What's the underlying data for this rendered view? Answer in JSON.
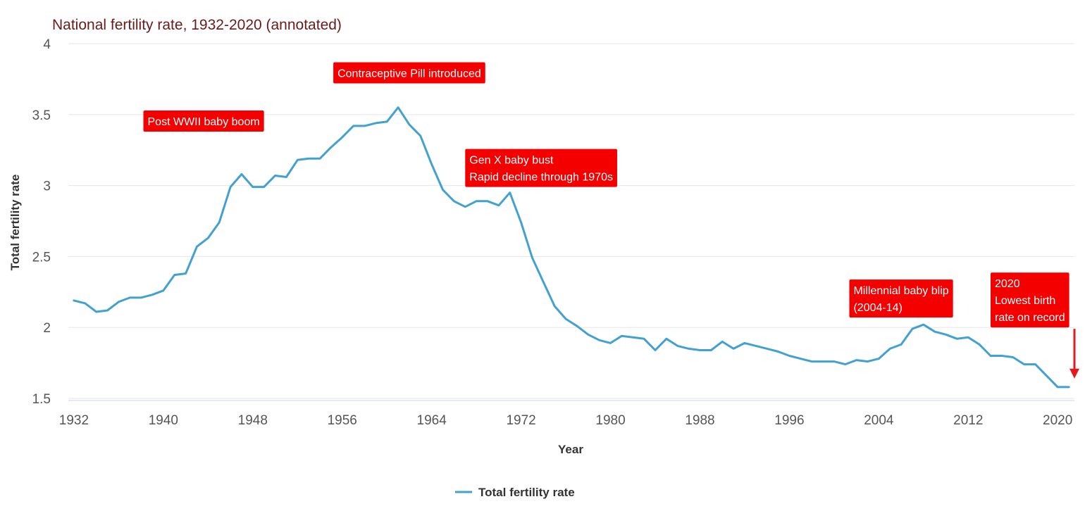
{
  "chart_data": {
    "type": "line",
    "title": "National fertility rate, 1932-2020 (annotated)",
    "xlabel": "Year",
    "ylabel": "Total fertility rate",
    "xlim": [
      1931.5,
      2021.5
    ],
    "ylim": [
      1.5,
      4
    ],
    "x_ticks": [
      1932,
      1940,
      1948,
      1956,
      1964,
      1972,
      1980,
      1988,
      1996,
      2004,
      2012,
      2020
    ],
    "y_ticks": [
      1.5,
      2,
      2.5,
      3,
      3.5,
      4
    ],
    "y_tick_labels": [
      "1.5",
      "2",
      "2.5",
      "3",
      "3.5",
      "4"
    ],
    "grid": true,
    "legend": "bottom-center",
    "series": [
      {
        "name": "Total fertility rate",
        "color": "#43a1d1",
        "x": [
          1932,
          1933,
          1934,
          1935,
          1936,
          1937,
          1938,
          1939,
          1940,
          1941,
          1942,
          1943,
          1944,
          1945,
          1946,
          1947,
          1948,
          1949,
          1950,
          1951,
          1952,
          1953,
          1954,
          1955,
          1956,
          1957,
          1958,
          1959,
          1960,
          1961,
          1962,
          1963,
          1964,
          1965,
          1966,
          1967,
          1968,
          1969,
          1970,
          1971,
          1972,
          1973,
          1974,
          1975,
          1976,
          1977,
          1978,
          1979,
          1980,
          1981,
          1982,
          1983,
          1984,
          1985,
          1986,
          1987,
          1988,
          1989,
          1990,
          1991,
          1992,
          1993,
          1994,
          1995,
          1996,
          1997,
          1998,
          1999,
          2000,
          2001,
          2002,
          2003,
          2004,
          2005,
          2006,
          2007,
          2008,
          2009,
          2010,
          2011,
          2012,
          2013,
          2014,
          2015,
          2016,
          2017,
          2018,
          2019,
          2020,
          2021
        ],
        "values": [
          2.19,
          2.17,
          2.11,
          2.12,
          2.18,
          2.21,
          2.21,
          2.23,
          2.26,
          2.37,
          2.38,
          2.57,
          2.63,
          2.74,
          2.99,
          3.08,
          2.99,
          2.99,
          3.07,
          3.06,
          3.18,
          3.19,
          3.19,
          3.27,
          3.34,
          3.42,
          3.42,
          3.44,
          3.45,
          3.55,
          3.43,
          3.35,
          3.15,
          2.97,
          2.89,
          2.85,
          2.89,
          2.89,
          2.86,
          2.95,
          2.74,
          2.49,
          2.32,
          2.15,
          2.06,
          2.01,
          1.95,
          1.91,
          1.89,
          1.94,
          1.93,
          1.92,
          1.84,
          1.92,
          1.87,
          1.85,
          1.84,
          1.84,
          1.9,
          1.85,
          1.89,
          1.87,
          1.85,
          1.83,
          1.8,
          1.78,
          1.76,
          1.76,
          1.76,
          1.74,
          1.77,
          1.76,
          1.78,
          1.85,
          1.88,
          1.99,
          2.02,
          1.97,
          1.95,
          1.92,
          1.93,
          1.88,
          1.8,
          1.8,
          1.79,
          1.74,
          1.74,
          1.66,
          1.58,
          1.58
        ]
      }
    ],
    "annotations": [
      {
        "lines": [
          "Post WWII baby boom"
        ],
        "x": 1949,
        "y": 3.38,
        "anchor": "bottom-right"
      },
      {
        "lines": [
          "Contraceptive Pill introduced"
        ],
        "x": 1962,
        "y": 3.72,
        "anchor": "bottom-center"
      },
      {
        "lines": [
          "Gen X baby bust",
          "Rapid decline through 1970s"
        ],
        "x": 1967,
        "y": 2.99,
        "anchor": "bottom-left"
      },
      {
        "lines": [
          "Millennial baby blip",
          "(2004-14)"
        ],
        "x": 2006,
        "y": 2.07,
        "anchor": "bottom-center"
      },
      {
        "lines": [
          "2020",
          "Lowest birth",
          "rate on record"
        ],
        "x": 2014,
        "y": 2.0,
        "anchor": "bottom-left"
      }
    ],
    "arrow": {
      "from_year": 2021.5,
      "from_value": 1.99,
      "to_year": 2021.5,
      "to_value": 1.64,
      "color": "#e31a1c"
    }
  }
}
